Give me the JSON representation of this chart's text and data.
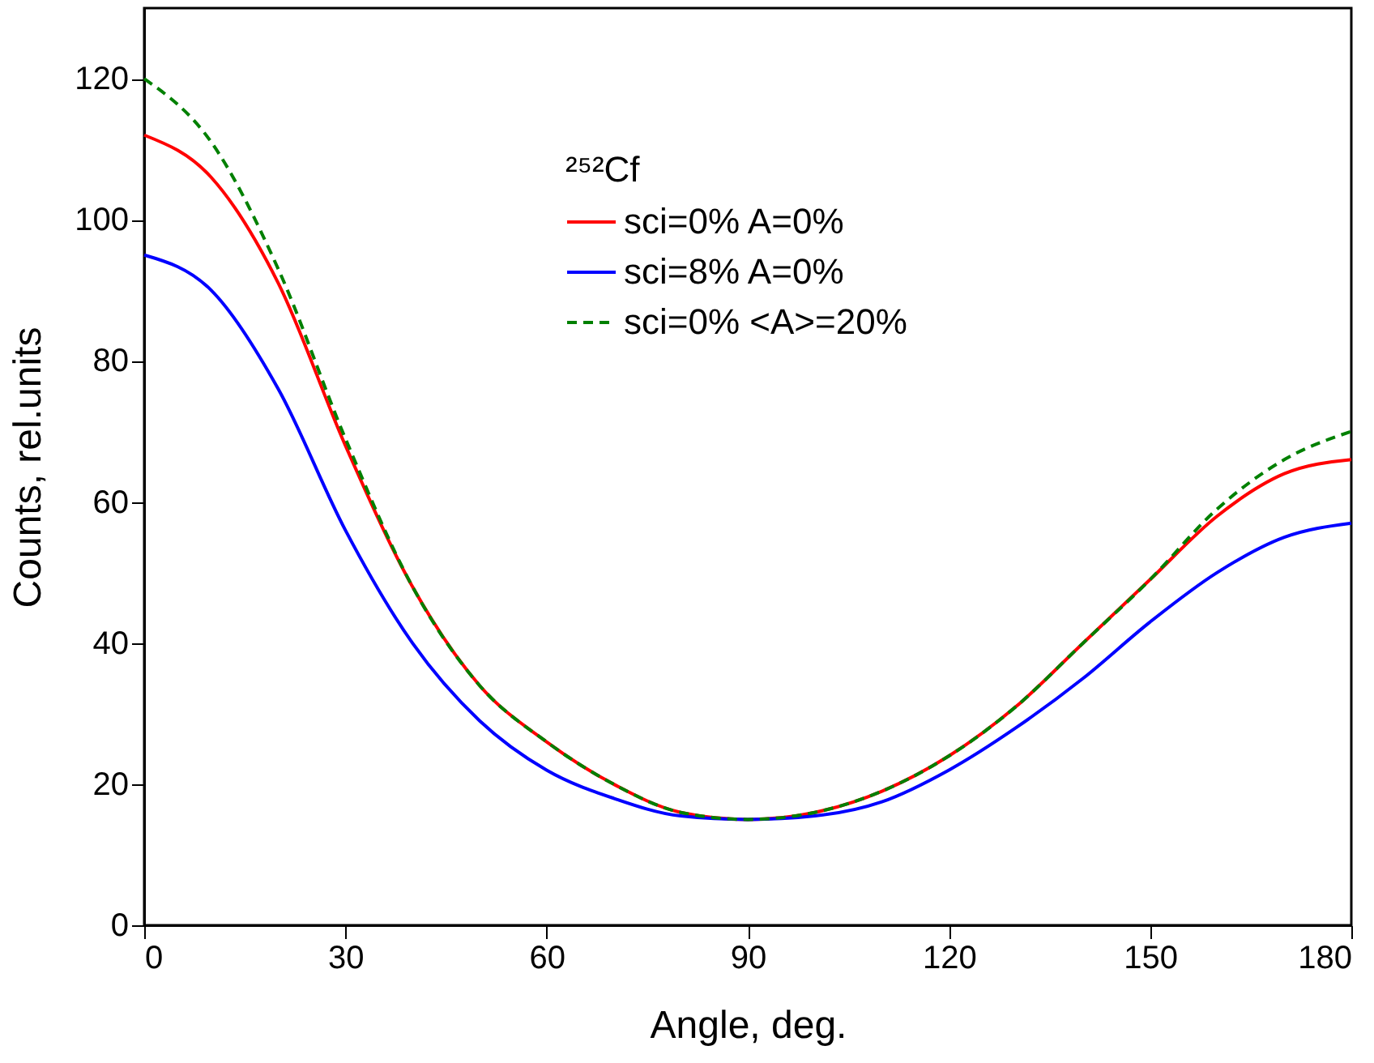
{
  "chart_data": {
    "type": "line",
    "xlabel": "Angle, deg.",
    "ylabel": "Counts, rel.units",
    "legend_title": "²⁵²Cf",
    "legend": "top right",
    "x": [
      0,
      10,
      20,
      30,
      40,
      50,
      60,
      70,
      80,
      90,
      100,
      110,
      120,
      130,
      140,
      150,
      160,
      170,
      180
    ],
    "series": [
      {
        "name": "sci=0% A=0%",
        "color": "#ff0000",
        "line_style": "solid",
        "values": [
          112,
          106,
          91,
          68,
          48,
          34,
          26,
          20,
          16,
          15,
          16,
          19,
          24,
          31,
          40,
          49,
          58,
          64,
          66
        ]
      },
      {
        "name": "sci=8% A=0%",
        "color": "#0000ff",
        "line_style": "solid",
        "values": [
          95,
          90,
          76,
          56,
          40,
          29,
          22,
          18,
          15.5,
          15,
          15.5,
          17.5,
          22,
          28,
          35,
          43,
          50,
          55,
          57
        ]
      },
      {
        "name": "sci=0% <A>=20%",
        "color": "#008000",
        "line_style": "dashed",
        "values": [
          120,
          111,
          93,
          69,
          48,
          34,
          26,
          20,
          16,
          15,
          16,
          19,
          24,
          31,
          40,
          49,
          59,
          66,
          70
        ]
      }
    ],
    "xlim": [
      0,
      180
    ],
    "xticks": [
      0,
      30,
      60,
      90,
      120,
      150,
      180
    ],
    "ylim": [
      0,
      130
    ],
    "yticks": [
      0,
      20,
      40,
      60,
      80,
      100,
      120
    ],
    "grid": false,
    "marker": "none"
  }
}
